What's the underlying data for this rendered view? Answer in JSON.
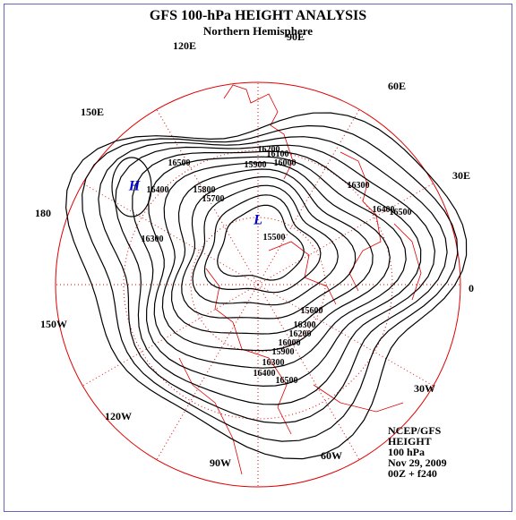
{
  "header": {
    "title": "GFS 100-hPa HEIGHT ANALYSIS",
    "subtitle": "Northern Hemisphere"
  },
  "longitudes": [
    "90E",
    "60E",
    "30E",
    "0",
    "30W",
    "60W",
    "90W",
    "120W",
    "150W",
    "180",
    "150E",
    "120E"
  ],
  "contour_labels": [
    16500,
    16400,
    16300,
    16200,
    16100,
    16000,
    15900,
    15800,
    15700,
    15500,
    16300,
    16400,
    16500,
    16300,
    16400,
    16500,
    15600,
    15900,
    16000,
    16200,
    16300
  ],
  "markers": {
    "high": "H",
    "low": "L"
  },
  "info": [
    "NCEP/GFS",
    "HEIGHT",
    "100 hPa",
    "Nov 29, 2009",
    "00Z + f240"
  ]
}
